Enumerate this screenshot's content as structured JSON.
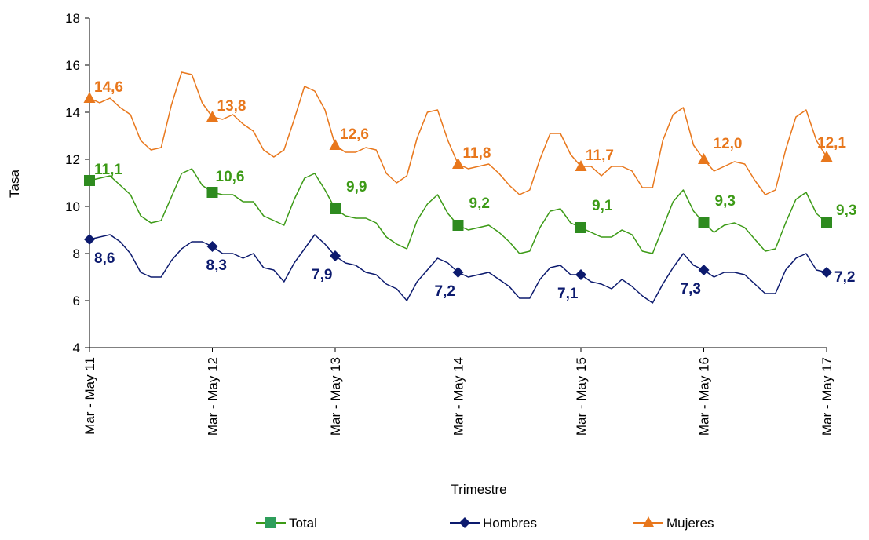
{
  "chart_data": {
    "type": "line",
    "title": "",
    "xlabel": "Trimestre",
    "ylabel": "Tasa",
    "ylim": [
      4,
      18
    ],
    "yticks": [
      4,
      6,
      8,
      10,
      12,
      14,
      16,
      18
    ],
    "grid": false,
    "legend_position": "bottom",
    "x_tick_labels": [
      "Mar - May 11",
      "Mar - May 12",
      "Mar - May 13",
      "Mar - May 14",
      "Mar - May 15",
      "Mar - May 16",
      "Mar - May 17"
    ],
    "x_tick_indices": [
      0,
      12,
      24,
      36,
      48,
      60,
      72
    ],
    "series": [
      {
        "name": "Total",
        "color": "#3c9a16",
        "marker_color": "#2e8b1f",
        "marker": "square",
        "values": [
          11.1,
          11.2,
          11.3,
          10.9,
          10.5,
          9.6,
          9.3,
          9.4,
          10.4,
          11.4,
          11.6,
          10.9,
          10.6,
          10.5,
          10.5,
          10.2,
          10.2,
          9.6,
          9.4,
          9.2,
          10.3,
          11.2,
          11.4,
          10.7,
          9.9,
          9.6,
          9.5,
          9.5,
          9.3,
          8.7,
          8.4,
          8.2,
          9.4,
          10.1,
          10.5,
          9.7,
          9.2,
          9.0,
          9.1,
          9.2,
          8.9,
          8.5,
          8.0,
          8.1,
          9.1,
          9.8,
          9.9,
          9.3,
          9.1,
          8.9,
          8.7,
          8.7,
          9.0,
          8.8,
          8.1,
          8.0,
          9.1,
          10.2,
          10.7,
          9.8,
          9.3,
          8.9,
          9.2,
          9.3,
          9.1,
          8.6,
          8.1,
          8.2,
          9.3,
          10.3,
          10.6,
          9.7,
          9.3
        ],
        "labels": [
          "11,1",
          "10,6",
          "9,9",
          "9,2",
          "9,1",
          "9,3",
          "9,3"
        ]
      },
      {
        "name": "Hombres",
        "color": "#0c1a6e",
        "marker_color": "#0c1a6e",
        "marker": "diamond",
        "values": [
          8.6,
          8.7,
          8.8,
          8.5,
          8.0,
          7.2,
          7.0,
          7.0,
          7.7,
          8.2,
          8.5,
          8.5,
          8.3,
          8.0,
          8.0,
          7.8,
          8.0,
          7.4,
          7.3,
          6.8,
          7.6,
          8.2,
          8.8,
          8.4,
          7.9,
          7.6,
          7.5,
          7.2,
          7.1,
          6.7,
          6.5,
          6.0,
          6.8,
          7.3,
          7.8,
          7.6,
          7.2,
          7.0,
          7.1,
          7.2,
          6.9,
          6.6,
          6.1,
          6.1,
          6.9,
          7.4,
          7.5,
          7.1,
          7.1,
          6.8,
          6.7,
          6.5,
          6.9,
          6.6,
          6.2,
          5.9,
          6.7,
          7.4,
          8.0,
          7.5,
          7.3,
          7.0,
          7.2,
          7.2,
          7.1,
          6.7,
          6.3,
          6.3,
          7.3,
          7.8,
          8.0,
          7.3,
          7.2
        ],
        "labels": [
          "8,6",
          "8,3",
          "7,9",
          "7,2",
          "7,1",
          "7,3",
          "7,2"
        ]
      },
      {
        "name": "Mujeres",
        "color": "#e8771c",
        "marker_color": "#e8771c",
        "marker": "triangle",
        "values": [
          14.6,
          14.4,
          14.6,
          14.2,
          13.9,
          12.8,
          12.4,
          12.5,
          14.3,
          15.7,
          15.6,
          14.4,
          13.8,
          13.7,
          13.9,
          13.5,
          13.2,
          12.4,
          12.1,
          12.4,
          13.7,
          15.1,
          14.9,
          14.1,
          12.6,
          12.3,
          12.3,
          12.5,
          12.4,
          11.4,
          11.0,
          11.3,
          12.9,
          14.0,
          14.1,
          12.8,
          11.8,
          11.6,
          11.7,
          11.8,
          11.4,
          10.9,
          10.5,
          10.7,
          12.0,
          13.1,
          13.1,
          12.2,
          11.7,
          11.7,
          11.3,
          11.7,
          11.7,
          11.5,
          10.8,
          10.8,
          12.8,
          13.9,
          14.2,
          12.6,
          12.0,
          11.5,
          11.7,
          11.9,
          11.8,
          11.1,
          10.5,
          10.7,
          12.4,
          13.8,
          14.1,
          12.8,
          12.1
        ],
        "labels": [
          "14,6",
          "13,8",
          "12,6",
          "11,8",
          "11,7",
          "12,0",
          "12,1"
        ]
      }
    ]
  }
}
